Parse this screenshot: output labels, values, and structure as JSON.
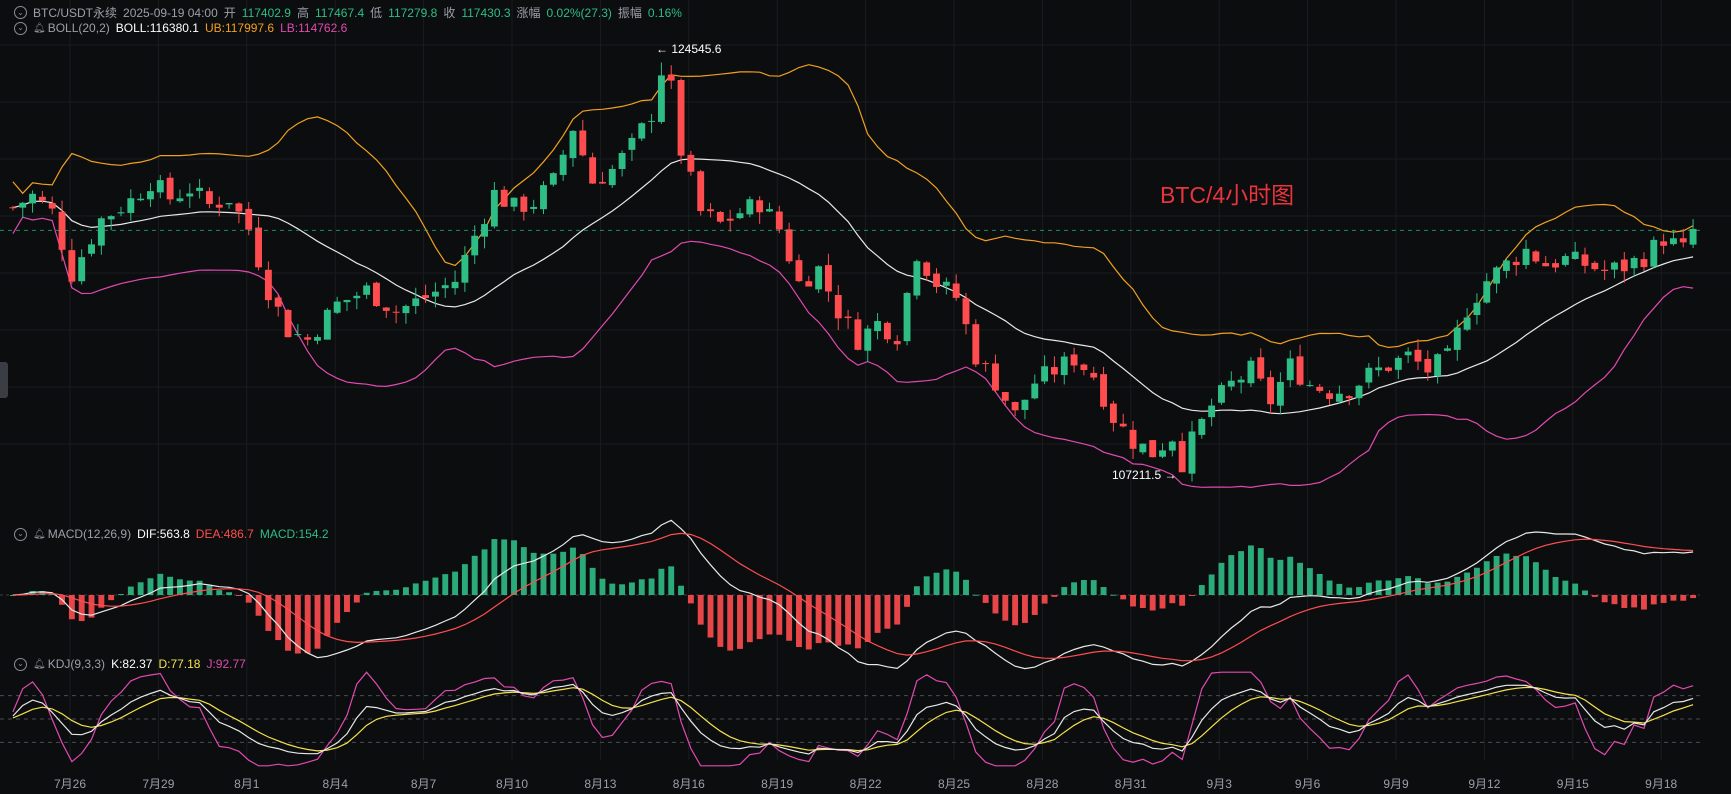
{
  "header": {
    "symbol": "BTC/USDT永续",
    "time": "2025-09-19 04:00",
    "open_label": "开",
    "open": "117402.9",
    "high_label": "高",
    "high": "117467.4",
    "low_label": "低",
    "low": "117279.8",
    "close_label": "收",
    "close": "117430.3",
    "change_label": "涨幅",
    "change": "0.02%(27.3)",
    "amp_label": "振幅",
    "amp": "0.16%"
  },
  "boll": {
    "name": "BOLL(20,2)",
    "mid": "BOLL:116380.1",
    "ub": "UB:117997.6",
    "lb": "LB:114762.6"
  },
  "macd": {
    "name": "MACD(12,26,9)",
    "dif": "DIF:563.8",
    "dea": "DEA:486.7",
    "macd": "MACD:154.2"
  },
  "kdj": {
    "name": "KDJ(9,3,3)",
    "k": "K:82.37",
    "d": "D:77.18",
    "j": "J:92.77"
  },
  "watermark": "BTC/4小时图",
  "colors": {
    "up": "#2ebd85",
    "down": "#ff4d4f",
    "ub": "#f0a020",
    "lb": "#e04ab0",
    "mid": "#e8e8e8",
    "bg": "#0c0d0f"
  },
  "chart_data": {
    "type": "candlestick",
    "interval": "4h",
    "x_ticks": [
      "7月26",
      "7月29",
      "8月1",
      "8月4",
      "8月7",
      "8月10",
      "8月13",
      "8月16",
      "8月19",
      "8月22",
      "8月25",
      "8月28",
      "8月31",
      "9月3",
      "9月6",
      "9月9",
      "9月12",
      "9月15",
      "9月18"
    ],
    "annotations": {
      "high": "124545.6",
      "low": "107211.5"
    },
    "price_path": [
      [
        0,
        118400
      ],
      [
        2,
        118900
      ],
      [
        4,
        118200
      ],
      [
        6,
        115600
      ],
      [
        9,
        117900
      ],
      [
        12,
        118700
      ],
      [
        14,
        119500
      ],
      [
        16,
        118800
      ],
      [
        18,
        119200
      ],
      [
        20,
        118500
      ],
      [
        22,
        118800
      ],
      [
        24,
        117500
      ],
      [
        26,
        114900
      ],
      [
        28,
        113200
      ],
      [
        30,
        112800
      ],
      [
        33,
        114300
      ],
      [
        36,
        114900
      ],
      [
        39,
        114000
      ],
      [
        42,
        114600
      ],
      [
        45,
        115300
      ],
      [
        47,
        117200
      ],
      [
        49,
        119000
      ],
      [
        51,
        118400
      ],
      [
        53,
        118600
      ],
      [
        55,
        119500
      ],
      [
        57,
        121800
      ],
      [
        59,
        119500
      ],
      [
        61,
        120000
      ],
      [
        63,
        121000
      ],
      [
        65,
        122400
      ],
      [
        66,
        124200
      ],
      [
        67,
        123400
      ],
      [
        68,
        120800
      ],
      [
        70,
        118200
      ],
      [
        72,
        117700
      ],
      [
        74,
        118200
      ],
      [
        76,
        118600
      ],
      [
        78,
        117500
      ],
      [
        80,
        115200
      ],
      [
        82,
        115800
      ],
      [
        84,
        114000
      ],
      [
        86,
        112800
      ],
      [
        88,
        113500
      ],
      [
        90,
        113000
      ],
      [
        92,
        116500
      ],
      [
        94,
        115200
      ],
      [
        96,
        114600
      ],
      [
        98,
        112100
      ],
      [
        100,
        111000
      ],
      [
        102,
        109600
      ],
      [
        104,
        111000
      ],
      [
        106,
        111500
      ],
      [
        108,
        112000
      ],
      [
        110,
        111300
      ],
      [
        112,
        109500
      ],
      [
        114,
        108500
      ],
      [
        116,
        108000
      ],
      [
        118,
        108700
      ],
      [
        119,
        107600
      ],
      [
        120,
        108500
      ],
      [
        122,
        110000
      ],
      [
        124,
        110900
      ],
      [
        126,
        111500
      ],
      [
        128,
        110200
      ],
      [
        130,
        111700
      ],
      [
        132,
        110900
      ],
      [
        134,
        110600
      ],
      [
        136,
        110700
      ],
      [
        138,
        111300
      ],
      [
        140,
        111700
      ],
      [
        142,
        112100
      ],
      [
        144,
        111500
      ],
      [
        146,
        112000
      ],
      [
        148,
        114100
      ],
      [
        150,
        115300
      ],
      [
        152,
        116000
      ],
      [
        154,
        116600
      ],
      [
        156,
        116000
      ],
      [
        158,
        116200
      ],
      [
        160,
        116000
      ],
      [
        162,
        115700
      ],
      [
        164,
        115900
      ],
      [
        166,
        116300
      ],
      [
        168,
        117100
      ],
      [
        170,
        116600
      ],
      [
        171,
        117430
      ]
    ],
    "ymin": 107211.5,
    "ymax": 124545.6,
    "indicators": [
      "BOLL(20,2)",
      "MACD(12,26,9)",
      "KDJ(9,3,3)"
    ]
  }
}
